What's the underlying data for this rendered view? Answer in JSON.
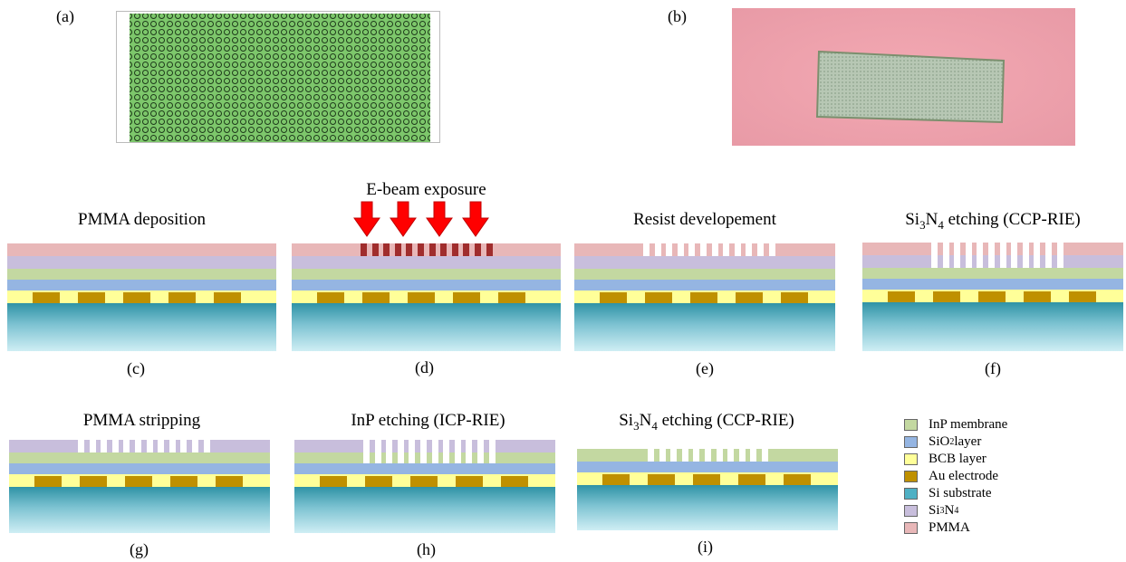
{
  "panel_labels": {
    "a": "(a)",
    "b": "(b)",
    "c": "(c)",
    "d": "(d)",
    "e": "(e)",
    "f": "(f)",
    "g": "(g)",
    "h": "(h)",
    "i": "(i)"
  },
  "steps": {
    "c": "PMMA deposition",
    "d": "E-beam exposure",
    "e": "Resist developement",
    "f": {
      "pre": "Si",
      "sub1": "3",
      "mid": "N",
      "sub2": "4",
      "post": " etching (CCP-RIE)"
    },
    "g": "PMMA stripping",
    "h": "InP etching (ICP-RIE)",
    "i": {
      "pre": "Si",
      "sub1": "3",
      "mid": "N",
      "sub2": "4",
      "post": "  etching (CCP-RIE)"
    }
  },
  "legend": [
    {
      "label": "InP membrane",
      "color": "#c3d8a1"
    },
    {
      "label": "SiO",
      "sub": "2",
      "after": " layer",
      "color": "#95b5e2"
    },
    {
      "label": "BCB layer",
      "color": "#ffff99"
    },
    {
      "label": "Au  electrode",
      "color": "#bf9000"
    },
    {
      "label": "Si substrate",
      "color": "#4fb0c4"
    },
    {
      "label": "Si",
      "sub": "3",
      "after": "N",
      "sub2": "4",
      "color": "#c8bedc"
    },
    {
      "label": "PMMA",
      "color": "#e8b7b8"
    }
  ],
  "colors": {
    "pmma": "#e8b7b8",
    "sin": "#c8bedc",
    "inp": "#c3d8a1",
    "sio2": "#95b5e2",
    "bcb": "#ffff99",
    "au": "#bf9000",
    "exposed": "#a02d2d",
    "arrow": "#ff0000"
  }
}
